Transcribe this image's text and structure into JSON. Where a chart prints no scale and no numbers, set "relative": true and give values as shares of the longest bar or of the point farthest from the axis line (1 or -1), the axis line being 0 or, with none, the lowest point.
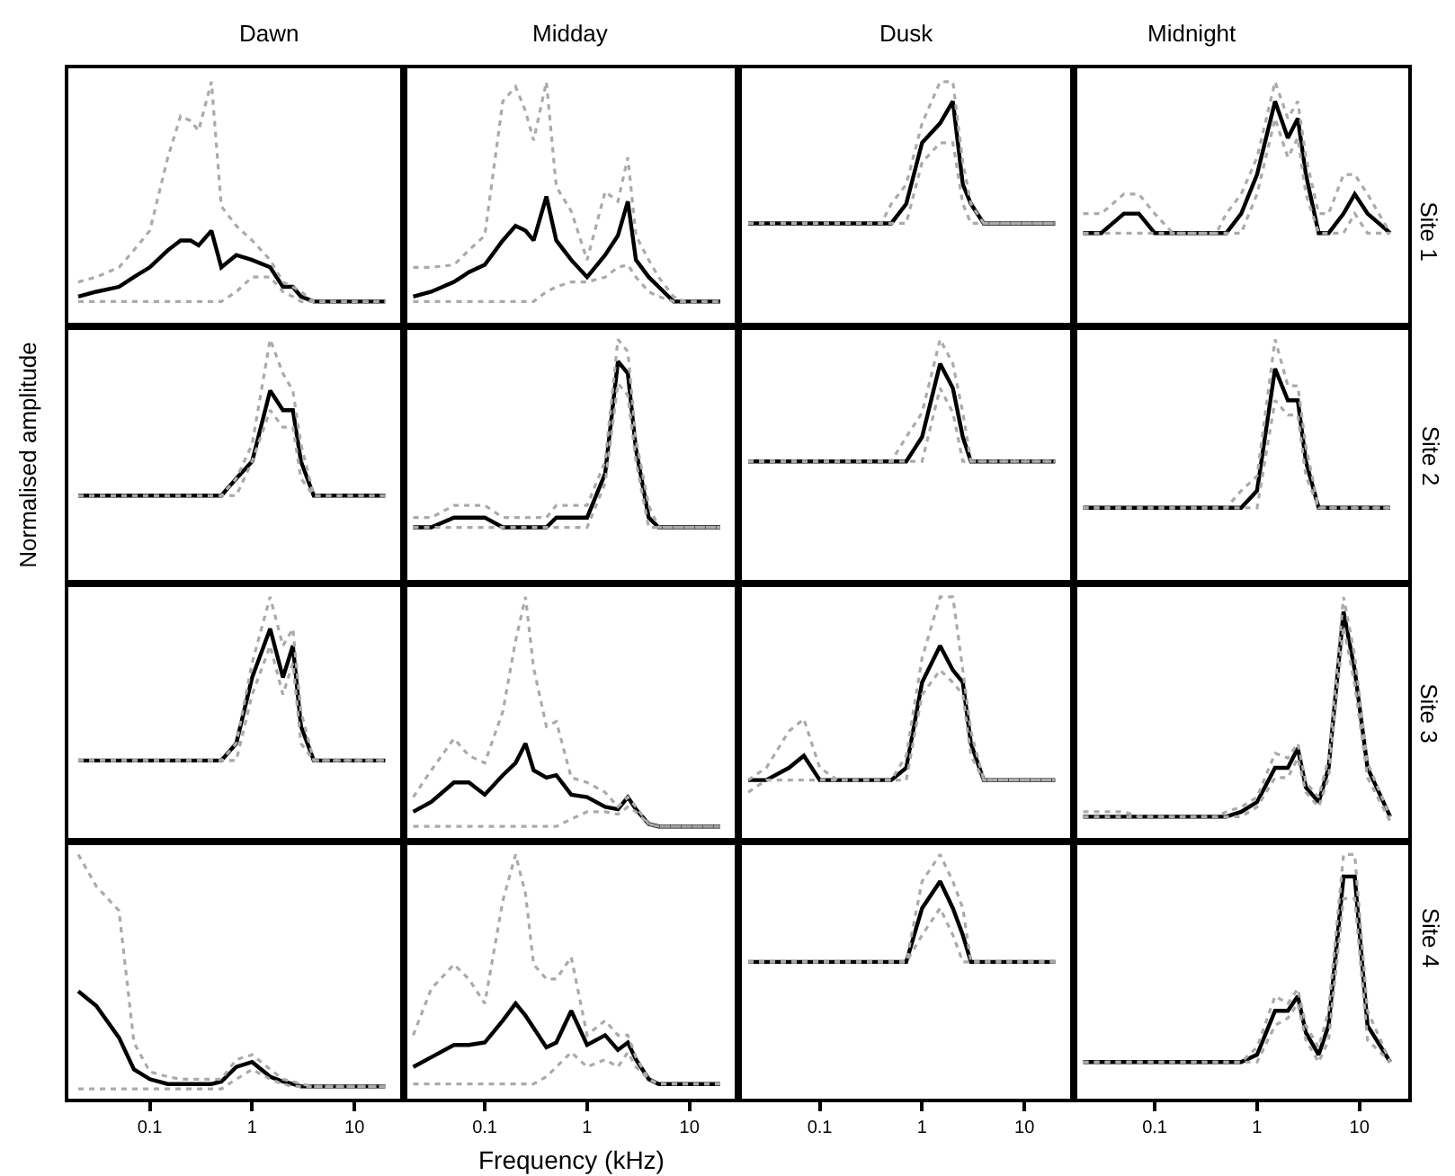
{
  "chart_data": [
    {
      "type": "line",
      "relative": true,
      "log": "x",
      "tick_labels": false,
      "title": "Dawn",
      "x": [
        0.02,
        0.03,
        0.05,
        0.07,
        0.1,
        0.15,
        0.2,
        0.25,
        0.3,
        0.4,
        0.5,
        0.7,
        1,
        1.5,
        2,
        2.5,
        3,
        4,
        5,
        7,
        9,
        12,
        20
      ],
      "xlim": [
        0.016,
        30
      ],
      "xticks": [
        0.1,
        1,
        10
      ],
      "series": [
        {
          "color": "#000000",
          "values": [
            0.12,
            0.14,
            0.16,
            0.2,
            0.24,
            0.31,
            0.35,
            0.35,
            0.33,
            0.39,
            0.24,
            0.29,
            0.27,
            0.24,
            0.16,
            0.16,
            0.12,
            0.1,
            0.1,
            0.1,
            0.1,
            0.1,
            0.1
          ]
        },
        {
          "color": "#aaaaaa",
          "line_style": "dotted",
          "values": [
            0.18,
            0.2,
            0.24,
            0.31,
            0.39,
            0.69,
            0.86,
            0.84,
            0.8,
            1,
            0.49,
            0.41,
            0.35,
            0.27,
            0.18,
            0.16,
            0.14,
            0.1,
            0.1,
            0.1,
            0.1,
            0.1,
            0.1
          ]
        },
        {
          "color": "#aaaaaa",
          "line_style": "dotted",
          "values": [
            0.1,
            0.1,
            0.1,
            0.1,
            0.1,
            0.1,
            0.1,
            0.1,
            0.1,
            0.1,
            0.1,
            0.14,
            0.2,
            0.2,
            0.14,
            0.12,
            0.1,
            0.1,
            0.1,
            0.1,
            0.1,
            0.1,
            0.1
          ]
        }
      ]
    },
    {
      "type": "line",
      "relative": true,
      "log": "x",
      "tick_labels": false,
      "title": "Midday",
      "x": [
        0.02,
        0.03,
        0.05,
        0.07,
        0.1,
        0.15,
        0.2,
        0.25,
        0.3,
        0.4,
        0.5,
        0.7,
        1,
        1.5,
        2,
        2.5,
        3,
        4,
        5,
        7,
        9,
        12,
        20
      ],
      "xlim": [
        0.016,
        30
      ],
      "xticks": [
        0.1,
        1,
        10
      ],
      "series": [
        {
          "color": "#000000",
          "values": [
            0.12,
            0.14,
            0.18,
            0.22,
            0.25,
            0.35,
            0.41,
            0.39,
            0.35,
            0.53,
            0.35,
            0.27,
            0.2,
            0.29,
            0.37,
            0.51,
            0.27,
            0.2,
            0.16,
            0.1,
            0.1,
            0.1,
            0.1
          ]
        },
        {
          "color": "#aaaaaa",
          "line_style": "dotted",
          "values": [
            0.24,
            0.24,
            0.25,
            0.31,
            0.37,
            0.92,
            0.98,
            0.88,
            0.76,
            1,
            0.57,
            0.47,
            0.27,
            0.55,
            0.51,
            0.69,
            0.37,
            0.27,
            0.2,
            0.12,
            0.1,
            0.1,
            0.1
          ]
        },
        {
          "color": "#aaaaaa",
          "line_style": "dotted",
          "values": [
            0.1,
            0.1,
            0.1,
            0.1,
            0.1,
            0.1,
            0.1,
            0.1,
            0.1,
            0.14,
            0.16,
            0.18,
            0.18,
            0.2,
            0.24,
            0.25,
            0.2,
            0.14,
            0.12,
            0.1,
            0.1,
            0.1,
            0.1
          ]
        }
      ]
    },
    {
      "type": "line",
      "relative": true,
      "log": "x",
      "tick_labels": false,
      "title": "Dusk",
      "x": [
        0.02,
        0.03,
        0.05,
        0.07,
        0.1,
        0.15,
        0.2,
        0.25,
        0.3,
        0.4,
        0.5,
        0.7,
        1,
        1.5,
        2,
        2.5,
        3,
        4,
        5,
        7,
        9,
        12,
        20
      ],
      "xlim": [
        0.016,
        30
      ],
      "xticks": [
        0.1,
        1,
        10
      ],
      "series": [
        {
          "color": "#000000",
          "values": [
            0.42,
            0.42,
            0.42,
            0.42,
            0.42,
            0.42,
            0.42,
            0.42,
            0.42,
            0.42,
            0.42,
            0.5,
            0.75,
            0.83,
            0.92,
            0.58,
            0.5,
            0.42,
            0.42,
            0.42,
            0.42,
            0.42,
            0.42
          ]
        },
        {
          "color": "#aaaaaa",
          "line_style": "dotted",
          "values": [
            0.42,
            0.42,
            0.42,
            0.42,
            0.42,
            0.42,
            0.42,
            0.42,
            0.42,
            0.42,
            0.5,
            0.58,
            0.83,
            1,
            1,
            0.67,
            0.5,
            0.42,
            0.42,
            0.42,
            0.42,
            0.42,
            0.42
          ]
        },
        {
          "color": "#aaaaaa",
          "line_style": "dotted",
          "values": [
            0.42,
            0.42,
            0.42,
            0.42,
            0.42,
            0.42,
            0.42,
            0.42,
            0.42,
            0.42,
            0.42,
            0.42,
            0.67,
            0.75,
            0.75,
            0.5,
            0.42,
            0.42,
            0.42,
            0.42,
            0.42,
            0.42,
            0.42
          ]
        }
      ]
    },
    {
      "type": "line",
      "relative": true,
      "log": "x",
      "tick_labels": false,
      "title": "Midnight",
      "annotations": [
        "Site 1"
      ],
      "x": [
        0.02,
        0.03,
        0.05,
        0.07,
        0.1,
        0.15,
        0.2,
        0.25,
        0.3,
        0.4,
        0.5,
        0.7,
        1,
        1.5,
        2,
        2.5,
        3,
        4,
        5,
        7,
        9,
        12,
        20
      ],
      "xlim": [
        0.016,
        30
      ],
      "xticks": [
        0.1,
        1,
        10
      ],
      "series": [
        {
          "color": "#000000",
          "values": [
            0.38,
            0.38,
            0.46,
            0.46,
            0.38,
            0.38,
            0.38,
            0.38,
            0.38,
            0.38,
            0.38,
            0.46,
            0.62,
            0.92,
            0.77,
            0.85,
            0.62,
            0.38,
            0.38,
            0.46,
            0.54,
            0.46,
            0.38
          ]
        },
        {
          "color": "#aaaaaa",
          "line_style": "dotted",
          "values": [
            0.46,
            0.46,
            0.54,
            0.54,
            0.46,
            0.38,
            0.38,
            0.38,
            0.38,
            0.38,
            0.46,
            0.54,
            0.69,
            1,
            0.85,
            0.92,
            0.69,
            0.46,
            0.46,
            0.62,
            0.62,
            0.54,
            0.38
          ]
        },
        {
          "color": "#aaaaaa",
          "line_style": "dotted",
          "values": [
            0.38,
            0.38,
            0.38,
            0.38,
            0.38,
            0.38,
            0.38,
            0.38,
            0.38,
            0.38,
            0.38,
            0.38,
            0.54,
            0.85,
            0.69,
            0.77,
            0.54,
            0.38,
            0.38,
            0.38,
            0.46,
            0.38,
            0.38
          ]
        }
      ]
    },
    {
      "type": "line",
      "relative": true,
      "log": "x",
      "tick_labels": false,
      "ylabel": "Normalised amplitude",
      "x": [
        0.02,
        0.03,
        0.05,
        0.07,
        0.1,
        0.15,
        0.2,
        0.25,
        0.3,
        0.4,
        0.5,
        0.7,
        1,
        1.5,
        2,
        2.5,
        3,
        4,
        5,
        7,
        9,
        12,
        20
      ],
      "xlim": [
        0.016,
        30
      ],
      "xticks": [
        0.1,
        1,
        10
      ],
      "series": [
        {
          "color": "#000000",
          "values": [
            0.36,
            0.36,
            0.36,
            0.36,
            0.36,
            0.36,
            0.36,
            0.36,
            0.36,
            0.36,
            0.36,
            0.43,
            0.5,
            0.79,
            0.71,
            0.71,
            0.5,
            0.36,
            0.36,
            0.36,
            0.36,
            0.36,
            0.36
          ]
        },
        {
          "color": "#aaaaaa",
          "line_style": "dotted",
          "values": [
            0.36,
            0.36,
            0.36,
            0.36,
            0.36,
            0.36,
            0.36,
            0.36,
            0.36,
            0.36,
            0.36,
            0.43,
            0.57,
            1,
            0.86,
            0.79,
            0.57,
            0.36,
            0.36,
            0.36,
            0.36,
            0.36,
            0.36
          ]
        },
        {
          "color": "#aaaaaa",
          "line_style": "dotted",
          "values": [
            0.36,
            0.36,
            0.36,
            0.36,
            0.36,
            0.36,
            0.36,
            0.36,
            0.36,
            0.36,
            0.36,
            0.36,
            0.5,
            0.71,
            0.64,
            0.64,
            0.43,
            0.36,
            0.36,
            0.36,
            0.36,
            0.36,
            0.36
          ]
        }
      ]
    },
    {
      "type": "line",
      "relative": true,
      "log": "x",
      "tick_labels": false,
      "x": [
        0.02,
        0.03,
        0.05,
        0.07,
        0.1,
        0.15,
        0.2,
        0.25,
        0.3,
        0.4,
        0.5,
        0.7,
        1,
        1.5,
        2,
        2.5,
        3,
        4,
        5,
        7,
        9,
        12,
        20
      ],
      "xlim": [
        0.016,
        30
      ],
      "xticks": [
        0.1,
        1,
        10
      ],
      "series": [
        {
          "color": "#000000",
          "values": [
            0.23,
            0.23,
            0.27,
            0.27,
            0.27,
            0.23,
            0.23,
            0.23,
            0.23,
            0.23,
            0.27,
            0.27,
            0.27,
            0.45,
            0.91,
            0.86,
            0.55,
            0.27,
            0.23,
            0.23,
            0.23,
            0.23,
            0.23
          ]
        },
        {
          "color": "#aaaaaa",
          "line_style": "dotted",
          "values": [
            0.27,
            0.27,
            0.32,
            0.32,
            0.32,
            0.27,
            0.27,
            0.27,
            0.27,
            0.27,
            0.32,
            0.32,
            0.32,
            0.5,
            1,
            0.95,
            0.59,
            0.32,
            0.23,
            0.23,
            0.23,
            0.23,
            0.23
          ]
        },
        {
          "color": "#aaaaaa",
          "line_style": "dotted",
          "values": [
            0.23,
            0.23,
            0.23,
            0.23,
            0.23,
            0.23,
            0.23,
            0.23,
            0.23,
            0.23,
            0.23,
            0.23,
            0.23,
            0.41,
            0.82,
            0.77,
            0.5,
            0.23,
            0.23,
            0.23,
            0.23,
            0.23,
            0.23
          ]
        }
      ]
    },
    {
      "type": "line",
      "relative": true,
      "log": "x",
      "tick_labels": false,
      "x": [
        0.02,
        0.03,
        0.05,
        0.07,
        0.1,
        0.15,
        0.2,
        0.25,
        0.3,
        0.4,
        0.5,
        0.7,
        1,
        1.5,
        2,
        2.5,
        3,
        4,
        5,
        7,
        9,
        12,
        20
      ],
      "xlim": [
        0.016,
        30
      ],
      "xticks": [
        0.1,
        1,
        10
      ],
      "series": [
        {
          "color": "#000000",
          "values": [
            0.5,
            0.5,
            0.5,
            0.5,
            0.5,
            0.5,
            0.5,
            0.5,
            0.5,
            0.5,
            0.5,
            0.5,
            0.6,
            0.9,
            0.8,
            0.6,
            0.5,
            0.5,
            0.5,
            0.5,
            0.5,
            0.5,
            0.5
          ]
        },
        {
          "color": "#aaaaaa",
          "line_style": "dotted",
          "values": [
            0.5,
            0.5,
            0.5,
            0.5,
            0.5,
            0.5,
            0.5,
            0.5,
            0.5,
            0.5,
            0.5,
            0.6,
            0.7,
            1,
            0.9,
            0.7,
            0.5,
            0.5,
            0.5,
            0.5,
            0.5,
            0.5,
            0.5
          ]
        },
        {
          "color": "#aaaaaa",
          "line_style": "dotted",
          "values": [
            0.5,
            0.5,
            0.5,
            0.5,
            0.5,
            0.5,
            0.5,
            0.5,
            0.5,
            0.5,
            0.5,
            0.5,
            0.5,
            0.8,
            0.7,
            0.5,
            0.5,
            0.5,
            0.5,
            0.5,
            0.5,
            0.5,
            0.5
          ]
        }
      ]
    },
    {
      "type": "line",
      "relative": true,
      "log": "x",
      "tick_labels": false,
      "annotations": [
        "Site 2"
      ],
      "x": [
        0.02,
        0.03,
        0.05,
        0.07,
        0.1,
        0.15,
        0.2,
        0.25,
        0.3,
        0.4,
        0.5,
        0.7,
        1,
        1.5,
        2,
        2.5,
        3,
        4,
        5,
        7,
        9,
        12,
        20
      ],
      "xlim": [
        0.016,
        30
      ],
      "xticks": [
        0.1,
        1,
        10
      ],
      "series": [
        {
          "color": "#000000",
          "values": [
            0.31,
            0.31,
            0.31,
            0.31,
            0.31,
            0.31,
            0.31,
            0.31,
            0.31,
            0.31,
            0.31,
            0.31,
            0.38,
            0.88,
            0.75,
            0.75,
            0.5,
            0.31,
            0.31,
            0.31,
            0.31,
            0.31,
            0.31
          ]
        },
        {
          "color": "#aaaaaa",
          "line_style": "dotted",
          "values": [
            0.31,
            0.31,
            0.31,
            0.31,
            0.31,
            0.31,
            0.31,
            0.31,
            0.31,
            0.31,
            0.31,
            0.38,
            0.44,
            1,
            0.81,
            0.81,
            0.56,
            0.31,
            0.31,
            0.31,
            0.31,
            0.31,
            0.31
          ]
        },
        {
          "color": "#aaaaaa",
          "line_style": "dotted",
          "values": [
            0.31,
            0.31,
            0.31,
            0.31,
            0.31,
            0.31,
            0.31,
            0.31,
            0.31,
            0.31,
            0.31,
            0.31,
            0.31,
            0.75,
            0.69,
            0.69,
            0.44,
            0.31,
            0.31,
            0.31,
            0.31,
            0.31,
            0.31
          ]
        }
      ]
    },
    {
      "type": "line",
      "relative": true,
      "log": "x",
      "tick_labels": false,
      "x": [
        0.02,
        0.03,
        0.05,
        0.07,
        0.1,
        0.15,
        0.2,
        0.25,
        0.3,
        0.4,
        0.5,
        0.7,
        1,
        1.5,
        2,
        2.5,
        3,
        4,
        5,
        7,
        9,
        12,
        20
      ],
      "xlim": [
        0.016,
        30
      ],
      "xticks": [
        0.1,
        1,
        10
      ],
      "series": [
        {
          "color": "#000000",
          "values": [
            0.33,
            0.33,
            0.33,
            0.33,
            0.33,
            0.33,
            0.33,
            0.33,
            0.33,
            0.33,
            0.33,
            0.4,
            0.67,
            0.87,
            0.67,
            0.8,
            0.47,
            0.33,
            0.33,
            0.33,
            0.33,
            0.33,
            0.33
          ]
        },
        {
          "color": "#aaaaaa",
          "line_style": "dotted",
          "values": [
            0.33,
            0.33,
            0.33,
            0.33,
            0.33,
            0.33,
            0.33,
            0.33,
            0.33,
            0.33,
            0.33,
            0.4,
            0.73,
            1,
            0.8,
            0.87,
            0.53,
            0.33,
            0.33,
            0.33,
            0.33,
            0.33,
            0.33
          ]
        },
        {
          "color": "#aaaaaa",
          "line_style": "dotted",
          "values": [
            0.33,
            0.33,
            0.33,
            0.33,
            0.33,
            0.33,
            0.33,
            0.33,
            0.33,
            0.33,
            0.33,
            0.33,
            0.6,
            0.8,
            0.6,
            0.73,
            0.4,
            0.33,
            0.33,
            0.33,
            0.33,
            0.33,
            0.33
          ]
        }
      ]
    },
    {
      "type": "line",
      "relative": true,
      "log": "x",
      "tick_labels": false,
      "x": [
        0.02,
        0.03,
        0.05,
        0.07,
        0.1,
        0.15,
        0.2,
        0.25,
        0.3,
        0.4,
        0.5,
        0.7,
        1,
        1.5,
        2,
        2.5,
        3,
        4,
        5,
        7,
        9,
        12,
        20
      ],
      "xlim": [
        0.016,
        30
      ],
      "xticks": [
        0.1,
        1,
        10
      ],
      "series": [
        {
          "color": "#000000",
          "values": [
            0.12,
            0.16,
            0.24,
            0.24,
            0.19,
            0.27,
            0.32,
            0.4,
            0.29,
            0.26,
            0.27,
            0.19,
            0.18,
            0.14,
            0.13,
            0.18,
            0.13,
            0.07,
            0.06,
            0.06,
            0.06,
            0.06,
            0.06
          ]
        },
        {
          "color": "#aaaaaa",
          "line_style": "dotted",
          "values": [
            0.18,
            0.29,
            0.42,
            0.35,
            0.32,
            0.53,
            0.82,
            1,
            0.71,
            0.47,
            0.49,
            0.26,
            0.24,
            0.2,
            0.14,
            0.18,
            0.14,
            0.07,
            0.06,
            0.06,
            0.06,
            0.06,
            0.06
          ]
        },
        {
          "color": "#aaaaaa",
          "line_style": "dotted",
          "values": [
            0.06,
            0.06,
            0.06,
            0.06,
            0.06,
            0.06,
            0.06,
            0.06,
            0.06,
            0.06,
            0.06,
            0.09,
            0.12,
            0.12,
            0.11,
            0.14,
            0.12,
            0.07,
            0.06,
            0.06,
            0.06,
            0.06,
            0.06
          ]
        }
      ]
    },
    {
      "type": "line",
      "relative": true,
      "log": "x",
      "tick_labels": false,
      "x": [
        0.02,
        0.03,
        0.05,
        0.07,
        0.1,
        0.15,
        0.2,
        0.25,
        0.3,
        0.4,
        0.5,
        0.7,
        1,
        1.5,
        2,
        2.5,
        3,
        4,
        5,
        7,
        9,
        12,
        20
      ],
      "xlim": [
        0.016,
        30
      ],
      "xticks": [
        0.1,
        1,
        10
      ],
      "series": [
        {
          "color": "#000000",
          "values": [
            0.25,
            0.25,
            0.3,
            0.35,
            0.25,
            0.25,
            0.25,
            0.25,
            0.25,
            0.25,
            0.25,
            0.3,
            0.65,
            0.8,
            0.7,
            0.65,
            0.4,
            0.25,
            0.25,
            0.25,
            0.25,
            0.25,
            0.25
          ]
        },
        {
          "color": "#aaaaaa",
          "line_style": "dotted",
          "values": [
            0.25,
            0.3,
            0.45,
            0.5,
            0.3,
            0.25,
            0.25,
            0.25,
            0.25,
            0.25,
            0.25,
            0.35,
            0.75,
            1,
            1,
            0.7,
            0.45,
            0.25,
            0.25,
            0.25,
            0.25,
            0.25,
            0.25
          ]
        },
        {
          "color": "#aaaaaa",
          "line_style": "dotted",
          "values": [
            0.2,
            0.25,
            0.25,
            0.25,
            0.25,
            0.25,
            0.25,
            0.25,
            0.25,
            0.25,
            0.25,
            0.25,
            0.6,
            0.7,
            0.65,
            0.6,
            0.35,
            0.25,
            0.25,
            0.25,
            0.25,
            0.25,
            0.25
          ]
        }
      ]
    },
    {
      "type": "line",
      "relative": true,
      "log": "x",
      "tick_labels": false,
      "annotations": [
        "Site 3"
      ],
      "x": [
        0.02,
        0.03,
        0.05,
        0.07,
        0.1,
        0.15,
        0.2,
        0.25,
        0.3,
        0.4,
        0.5,
        0.7,
        1,
        1.5,
        2,
        2.5,
        3,
        4,
        5,
        7,
        9,
        12,
        20
      ],
      "xlim": [
        0.016,
        30
      ],
      "xticks": [
        0.1,
        1,
        10
      ],
      "series": [
        {
          "color": "#000000",
          "values": [
            0.1,
            0.1,
            0.1,
            0.1,
            0.1,
            0.1,
            0.1,
            0.1,
            0.1,
            0.1,
            0.1,
            0.12,
            0.16,
            0.3,
            0.3,
            0.38,
            0.22,
            0.16,
            0.3,
            0.94,
            0.7,
            0.3,
            0.1
          ]
        },
        {
          "color": "#aaaaaa",
          "line_style": "dotted",
          "values": [
            0.12,
            0.12,
            0.12,
            0.1,
            0.1,
            0.1,
            0.1,
            0.1,
            0.1,
            0.1,
            0.12,
            0.14,
            0.18,
            0.36,
            0.34,
            0.4,
            0.24,
            0.18,
            0.34,
            1,
            0.76,
            0.32,
            0.1
          ]
        },
        {
          "color": "#aaaaaa",
          "line_style": "dotted",
          "values": [
            0.1,
            0.1,
            0.1,
            0.1,
            0.1,
            0.1,
            0.1,
            0.1,
            0.1,
            0.1,
            0.1,
            0.1,
            0.14,
            0.26,
            0.26,
            0.34,
            0.2,
            0.14,
            0.26,
            0.88,
            0.64,
            0.26,
            0.08
          ]
        }
      ]
    },
    {
      "type": "line",
      "relative": true,
      "log": "x",
      "tick_labels": "x",
      "x": [
        0.02,
        0.03,
        0.05,
        0.07,
        0.1,
        0.15,
        0.2,
        0.25,
        0.3,
        0.4,
        0.5,
        0.7,
        1,
        1.5,
        2,
        2.5,
        3,
        4,
        5,
        7,
        9,
        12,
        20
      ],
      "xlim": [
        0.016,
        30
      ],
      "xticks": [
        0.1,
        1,
        10
      ],
      "series": [
        {
          "color": "#000000",
          "values": [
            0.44,
            0.38,
            0.25,
            0.12,
            0.08,
            0.06,
            0.06,
            0.06,
            0.06,
            0.06,
            0.07,
            0.13,
            0.15,
            0.09,
            0.07,
            0.06,
            0.05,
            0.05,
            0.05,
            0.05,
            0.05,
            0.05,
            0.05
          ]
        },
        {
          "color": "#aaaaaa",
          "line_style": "dotted",
          "values": [
            1,
            0.87,
            0.77,
            0.23,
            0.11,
            0.09,
            0.08,
            0.08,
            0.08,
            0.08,
            0.08,
            0.16,
            0.18,
            0.12,
            0.08,
            0.07,
            0.06,
            0.05,
            0.05,
            0.05,
            0.05,
            0.05,
            0.05
          ]
        },
        {
          "color": "#aaaaaa",
          "line_style": "dotted",
          "values": [
            0.04,
            0.04,
            0.04,
            0.04,
            0.04,
            0.04,
            0.04,
            0.04,
            0.04,
            0.04,
            0.04,
            0.08,
            0.12,
            0.08,
            0.06,
            0.05,
            0.05,
            0.05,
            0.05,
            0.05,
            0.05,
            0.05,
            0.05
          ]
        }
      ]
    },
    {
      "type": "line",
      "relative": true,
      "log": "x",
      "tick_labels": "x",
      "xlabel": "Frequency (kHz)",
      "x": [
        0.02,
        0.03,
        0.05,
        0.07,
        0.1,
        0.15,
        0.2,
        0.25,
        0.3,
        0.4,
        0.5,
        0.7,
        1,
        1.5,
        2,
        2.5,
        3,
        4,
        5,
        7,
        9,
        12,
        20
      ],
      "xlim": [
        0.016,
        30
      ],
      "xticks": [
        0.1,
        1,
        10
      ],
      "series": [
        {
          "color": "#000000",
          "values": [
            0.13,
            0.17,
            0.22,
            0.22,
            0.23,
            0.32,
            0.39,
            0.34,
            0.29,
            0.21,
            0.23,
            0.36,
            0.22,
            0.26,
            0.2,
            0.23,
            0.16,
            0.08,
            0.06,
            0.06,
            0.06,
            0.06,
            0.06
          ]
        },
        {
          "color": "#aaaaaa",
          "line_style": "dotted",
          "values": [
            0.26,
            0.45,
            0.55,
            0.49,
            0.39,
            0.81,
            1,
            0.84,
            0.55,
            0.49,
            0.49,
            0.58,
            0.26,
            0.32,
            0.26,
            0.26,
            0.17,
            0.08,
            0.06,
            0.06,
            0.06,
            0.06,
            0.06
          ]
        },
        {
          "color": "#aaaaaa",
          "line_style": "dotted",
          "values": [
            0.06,
            0.06,
            0.06,
            0.06,
            0.06,
            0.06,
            0.06,
            0.06,
            0.06,
            0.09,
            0.13,
            0.19,
            0.13,
            0.16,
            0.13,
            0.19,
            0.13,
            0.08,
            0.06,
            0.06,
            0.06,
            0.06,
            0.06
          ]
        }
      ]
    },
    {
      "type": "line",
      "relative": true,
      "log": "x",
      "tick_labels": "x",
      "x": [
        0.02,
        0.03,
        0.05,
        0.07,
        0.1,
        0.15,
        0.2,
        0.25,
        0.3,
        0.4,
        0.5,
        0.7,
        1,
        1.5,
        2,
        2.5,
        3,
        4,
        5,
        7,
        9,
        12,
        20
      ],
      "xlim": [
        0.016,
        30
      ],
      "xticks": [
        0.1,
        1,
        10
      ],
      "series": [
        {
          "color": "#000000",
          "values": [
            0.56,
            0.56,
            0.56,
            0.56,
            0.56,
            0.56,
            0.56,
            0.56,
            0.56,
            0.56,
            0.56,
            0.56,
            0.78,
            0.89,
            0.78,
            0.67,
            0.56,
            0.56,
            0.56,
            0.56,
            0.56,
            0.56,
            0.56
          ]
        },
        {
          "color": "#aaaaaa",
          "line_style": "dotted",
          "values": [
            0.56,
            0.56,
            0.56,
            0.56,
            0.56,
            0.56,
            0.56,
            0.56,
            0.56,
            0.56,
            0.56,
            0.56,
            0.89,
            1,
            0.89,
            0.78,
            0.56,
            0.56,
            0.56,
            0.56,
            0.56,
            0.56,
            0.56
          ]
        },
        {
          "color": "#aaaaaa",
          "line_style": "dotted",
          "values": [
            0.56,
            0.56,
            0.56,
            0.56,
            0.56,
            0.56,
            0.56,
            0.56,
            0.56,
            0.56,
            0.56,
            0.56,
            0.67,
            0.78,
            0.67,
            0.56,
            0.56,
            0.56,
            0.56,
            0.56,
            0.56,
            0.56,
            0.56
          ]
        }
      ]
    },
    {
      "type": "line",
      "relative": true,
      "log": "x",
      "tick_labels": "x",
      "annotations": [
        "Site 4"
      ],
      "x": [
        0.02,
        0.03,
        0.05,
        0.07,
        0.1,
        0.15,
        0.2,
        0.25,
        0.3,
        0.4,
        0.5,
        0.7,
        1,
        1.5,
        2,
        2.5,
        3,
        4,
        5,
        7,
        9,
        12,
        20
      ],
      "xlim": [
        0.016,
        30
      ],
      "xticks": [
        0.1,
        1,
        10
      ],
      "series": [
        {
          "color": "#000000",
          "values": [
            0.15,
            0.15,
            0.15,
            0.15,
            0.15,
            0.15,
            0.15,
            0.15,
            0.15,
            0.15,
            0.15,
            0.15,
            0.18,
            0.36,
            0.36,
            0.42,
            0.27,
            0.18,
            0.3,
            0.91,
            0.91,
            0.3,
            0.15
          ]
        },
        {
          "color": "#aaaaaa",
          "line_style": "dotted",
          "values": [
            0.15,
            0.15,
            0.15,
            0.15,
            0.15,
            0.15,
            0.15,
            0.15,
            0.15,
            0.15,
            0.15,
            0.15,
            0.21,
            0.42,
            0.39,
            0.45,
            0.3,
            0.21,
            0.36,
            1,
            1,
            0.36,
            0.15
          ]
        },
        {
          "color": "#aaaaaa",
          "line_style": "dotted",
          "values": [
            0.15,
            0.15,
            0.15,
            0.15,
            0.15,
            0.15,
            0.15,
            0.15,
            0.15,
            0.15,
            0.15,
            0.15,
            0.15,
            0.3,
            0.33,
            0.39,
            0.24,
            0.15,
            0.24,
            0.82,
            0.82,
            0.24,
            0.15
          ]
        }
      ]
    }
  ]
}
